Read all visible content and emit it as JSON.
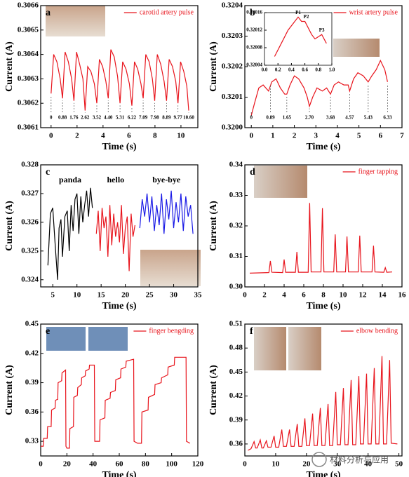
{
  "chart_data": [
    {
      "type": "line",
      "panel": "a",
      "xlabel": "Time (s)",
      "ylabel": "Current (A)",
      "legend": true,
      "xlim": [
        -0.8,
        11.3
      ],
      "xticks": [
        0,
        2,
        4,
        6,
        8,
        10
      ],
      "ylim": [
        0.3061,
        0.3066
      ],
      "yticks": [
        0.3061,
        0.3062,
        0.3063,
        0.3064,
        0.3065,
        0.3066
      ],
      "series": [
        {
          "name": "carotid artery pulse",
          "color": "#e8141c",
          "x": [
            0,
            0.2,
            0.45,
            0.7,
            0.88,
            1.08,
            1.33,
            1.58,
            1.76,
            1.96,
            2.2,
            2.45,
            2.62,
            2.82,
            3.07,
            3.33,
            3.52,
            3.72,
            3.97,
            4.22,
            4.4,
            4.6,
            4.86,
            5.12,
            5.31,
            5.51,
            5.77,
            6.03,
            6.22,
            6.42,
            6.67,
            6.92,
            7.09,
            7.29,
            7.55,
            7.8,
            7.98,
            8.18,
            8.44,
            8.7,
            8.89,
            9.09,
            9.35,
            9.6,
            9.77,
            9.97,
            10.22,
            10.45,
            10.6
          ],
          "values": [
            0.30624,
            0.3064,
            0.30637,
            0.3063,
            0.30622,
            0.30641,
            0.30637,
            0.3063,
            0.30621,
            0.30641,
            0.30636,
            0.3063,
            0.30617,
            0.30635,
            0.30633,
            0.30628,
            0.3062,
            0.30638,
            0.30635,
            0.30629,
            0.30622,
            0.30642,
            0.30639,
            0.30631,
            0.3062,
            0.30637,
            0.30634,
            0.30628,
            0.30619,
            0.30637,
            0.30634,
            0.30628,
            0.30622,
            0.3064,
            0.30637,
            0.3063,
            0.30621,
            0.3064,
            0.30636,
            0.30629,
            0.30621,
            0.30638,
            0.30635,
            0.30629,
            0.3062,
            0.30637,
            0.30633,
            0.30627,
            0.30617
          ]
        }
      ],
      "markers": [
        {
          "value": 0,
          "label": "0"
        },
        {
          "value": 0.88,
          "label": "0.88"
        },
        {
          "value": 1.76,
          "label": "1.76"
        },
        {
          "value": 2.62,
          "label": "2.62"
        },
        {
          "value": 3.52,
          "label": "3.52"
        },
        {
          "value": 4.4,
          "label": "4.40"
        },
        {
          "value": 5.31,
          "label": "5.31"
        },
        {
          "value": 6.22,
          "label": "6.22"
        },
        {
          "value": 7.09,
          "label": "7.09"
        },
        {
          "value": 7.98,
          "label": "7.98"
        },
        {
          "value": 8.89,
          "label": "8.89"
        },
        {
          "value": 9.77,
          "label": "9.77"
        },
        {
          "value": 10.6,
          "label": "10.60"
        }
      ]
    },
    {
      "type": "line",
      "panel": "b",
      "xlabel": "Time (s)",
      "ylabel": "Current (A)",
      "legend": true,
      "xlim": [
        -0.3,
        7
      ],
      "xticks": [
        0,
        1,
        2,
        3,
        4,
        5,
        6,
        7
      ],
      "ylim": [
        0.32,
        0.3204
      ],
      "yticks": [
        {
          "value": 0.32,
          "label": "0.3200"
        },
        0.3201,
        0.3202,
        0.3203,
        0.3204
      ],
      "series": [
        {
          "name": "wrist artery pulse",
          "color": "#e8141c",
          "x": [
            0,
            0.15,
            0.35,
            0.55,
            0.8,
            0.95,
            1.15,
            1.35,
            1.55,
            1.65,
            1.8,
            2.0,
            2.2,
            2.45,
            2.6,
            2.7,
            2.85,
            3.05,
            3.3,
            3.5,
            3.68,
            3.85,
            4.05,
            4.3,
            4.5,
            4.57,
            4.75,
            4.95,
            5.2,
            5.43,
            5.6,
            5.8,
            6.0,
            6.2,
            6.33
          ],
          "values": [
            0.32004,
            0.32008,
            0.32013,
            0.32014,
            0.32012,
            0.32015,
            0.32016,
            0.32013,
            0.32011,
            0.32011,
            0.32014,
            0.32017,
            0.32016,
            0.32013,
            0.3201,
            0.32007,
            0.3201,
            0.32013,
            0.32012,
            0.32013,
            0.32011,
            0.32014,
            0.32015,
            0.32014,
            0.32014,
            0.32012,
            0.32016,
            0.32018,
            0.32017,
            0.32015,
            0.32017,
            0.32019,
            0.32022,
            0.32019,
            0.32015
          ]
        }
      ],
      "markers": [
        {
          "value": 0,
          "label": "0"
        },
        {
          "value": 0.89,
          "label": "0.89"
        },
        {
          "value": 1.65,
          "label": "1.65"
        },
        {
          "value": 2.7,
          "label": "2.70"
        },
        {
          "value": 3.68,
          "label": "3.68"
        },
        {
          "value": 4.57,
          "label": "4.57"
        },
        {
          "value": 5.43,
          "label": "5.43"
        },
        {
          "value": 6.33,
          "label": "6.33"
        }
      ],
      "inset": {
        "xlim": [
          0,
          1
        ],
        "xticks": [
          {
            "value": 0,
            "label": "0.0"
          },
          0.2,
          0.4,
          0.6,
          0.8,
          {
            "value": 1,
            "label": "1.0"
          }
        ],
        "ylim": [
          0.32004,
          0.32016
        ],
        "yticks": [
          0.32004,
          0.32008,
          0.32012,
          0.32016
        ],
        "x": [
          0.15,
          0.25,
          0.35,
          0.45,
          0.5,
          0.55,
          0.6,
          0.7,
          0.75,
          0.85,
          0.92
        ],
        "values": [
          0.32006,
          0.32009,
          0.32012,
          0.32014,
          0.32015,
          0.32014,
          0.32014,
          0.32011,
          0.3201,
          0.32011,
          0.32009
        ],
        "points": [
          {
            "label": "P1",
            "x": 0.5,
            "y": 0.32015
          },
          {
            "label": "P2",
            "x": 0.62,
            "y": 0.32014
          },
          {
            "label": "P3",
            "x": 0.85,
            "y": 0.32011
          }
        ]
      }
    },
    {
      "type": "line",
      "panel": "c",
      "xlabel": "Time (s)",
      "ylabel": "Current (A)",
      "legend": false,
      "series_labels": true,
      "xlim": [
        2.5,
        35
      ],
      "xticks": [
        5,
        10,
        15,
        20,
        25,
        30,
        35
      ],
      "ylim": [
        0.32375,
        0.328
      ],
      "yticks": [
        0.324,
        0.325,
        0.326,
        0.327,
        0.328
      ],
      "series": [
        {
          "name": "panda",
          "color": "#000000",
          "x": [
            4,
            4.5,
            5,
            5.5,
            6,
            6.3,
            6.7,
            7,
            7.5,
            8,
            8.4,
            8.8,
            9.2,
            9.6,
            10,
            10.4,
            10.8,
            11.2,
            11.6,
            12,
            12.4,
            12.8,
            13.2
          ],
          "values": [
            0.3245,
            0.3263,
            0.3265,
            0.3252,
            0.324,
            0.3258,
            0.3261,
            0.3248,
            0.3262,
            0.3264,
            0.325,
            0.3266,
            0.3257,
            0.3268,
            0.327,
            0.3256,
            0.3269,
            0.326,
            0.3266,
            0.3271,
            0.3262,
            0.3272,
            0.3265
          ]
        },
        {
          "name": "hello",
          "color": "#e8141c",
          "x": [
            14,
            14.4,
            14.8,
            15.2,
            15.6,
            16,
            16.4,
            16.8,
            17.2,
            17.6,
            18,
            18.4,
            18.8,
            19.2,
            19.6,
            20,
            20.4,
            20.8,
            21.2,
            21.6,
            22
          ],
          "values": [
            0.3256,
            0.3264,
            0.325,
            0.3265,
            0.3258,
            0.3262,
            0.3248,
            0.3266,
            0.3252,
            0.3263,
            0.3255,
            0.326,
            0.3253,
            0.3266,
            0.3249,
            0.3258,
            0.3262,
            0.3243,
            0.3263,
            0.3255,
            0.3259
          ]
        },
        {
          "name": "bye-bye",
          "color": "#1a1ae6",
          "x": [
            23,
            23.5,
            24,
            24.5,
            25,
            25.5,
            26,
            26.5,
            27,
            27.5,
            28,
            28.5,
            29,
            29.5,
            30,
            30.5,
            31,
            31.5,
            32,
            32.5,
            33,
            33.5,
            34
          ],
          "values": [
            0.3258,
            0.3268,
            0.3262,
            0.327,
            0.326,
            0.3269,
            0.3257,
            0.3266,
            0.3259,
            0.327,
            0.3256,
            0.3268,
            0.3261,
            0.3271,
            0.3258,
            0.3267,
            0.326,
            0.327,
            0.3257,
            0.3269,
            0.3262,
            0.3266,
            0.3256
          ]
        }
      ]
    },
    {
      "type": "line",
      "panel": "d",
      "xlabel": "Time (s)",
      "ylabel": "Current (A)",
      "legend": true,
      "xlim": [
        0,
        16
      ],
      "xticks": [
        0,
        2,
        4,
        6,
        8,
        10,
        12,
        14,
        16
      ],
      "ylim": [
        0.3,
        0.34
      ],
      "yticks": [
        {
          "value": 0.3,
          "label": "0.30"
        },
        0.31,
        0.32,
        0.33,
        0.34
      ],
      "series": [
        {
          "name": "finger tapping",
          "color": "#e8141c",
          "x": [
            0.5,
            2.45,
            2.6,
            2.75,
            3.85,
            4.0,
            4.15,
            5.15,
            5.3,
            5.45,
            6.45,
            6.6,
            6.75,
            7.75,
            7.9,
            8.05,
            9.05,
            9.2,
            9.35,
            10.25,
            10.4,
            10.55,
            11.55,
            11.7,
            11.85,
            12.95,
            13.1,
            13.25,
            14.15,
            14.3,
            14.45,
            15
          ],
          "values": [
            0.3045,
            0.3047,
            0.3085,
            0.3048,
            0.3047,
            0.309,
            0.3048,
            0.3048,
            0.3115,
            0.3048,
            0.3048,
            0.3275,
            0.3049,
            0.3049,
            0.3258,
            0.3049,
            0.3049,
            0.3172,
            0.3049,
            0.3049,
            0.3165,
            0.3049,
            0.3049,
            0.3168,
            0.3049,
            0.3049,
            0.3135,
            0.3049,
            0.3048,
            0.3063,
            0.3048,
            0.3049
          ]
        }
      ]
    },
    {
      "type": "line",
      "panel": "e",
      "xlabel": "Time (s)",
      "ylabel": "Current (A)",
      "legend": true,
      "xlim": [
        0,
        120
      ],
      "xticks": [
        0,
        20,
        40,
        60,
        80,
        100,
        120
      ],
      "ylim": [
        0.315,
        0.45
      ],
      "yticks": [
        0.33,
        0.36,
        0.39,
        0.42,
        0.45
      ],
      "series": [
        {
          "name": "finger bengding",
          "color": "#e8141c",
          "x": [
            0,
            2,
            2.3,
            5,
            5.3,
            8,
            8.3,
            11,
            11.3,
            13,
            13.3,
            16,
            16.3,
            19,
            19.3,
            20,
            22,
            22.3,
            25,
            25.3,
            28,
            28.3,
            31,
            31.3,
            34,
            34.3,
            37,
            37.3,
            41,
            41.3,
            43,
            45,
            45.3,
            49,
            49.3,
            53,
            53.3,
            57,
            57.3,
            61,
            61.3,
            65,
            65.3,
            71,
            71.3,
            74,
            77,
            77.3,
            82,
            82.3,
            87,
            87.3,
            92,
            92.3,
            97,
            97.3,
            102,
            102.3,
            111,
            111.3,
            114
          ],
          "values": [
            0.325,
            0.325,
            0.333,
            0.333,
            0.345,
            0.345,
            0.362,
            0.364,
            0.372,
            0.373,
            0.39,
            0.392,
            0.4,
            0.403,
            0.325,
            0.323,
            0.323,
            0.343,
            0.345,
            0.375,
            0.377,
            0.385,
            0.388,
            0.395,
            0.397,
            0.402,
            0.404,
            0.408,
            0.408,
            0.33,
            0.33,
            0.33,
            0.352,
            0.354,
            0.372,
            0.374,
            0.38,
            0.382,
            0.393,
            0.395,
            0.404,
            0.406,
            0.412,
            0.414,
            0.33,
            0.328,
            0.328,
            0.36,
            0.362,
            0.375,
            0.378,
            0.388,
            0.39,
            0.395,
            0.398,
            0.406,
            0.408,
            0.416,
            0.416,
            0.33,
            0.328
          ]
        }
      ]
    },
    {
      "type": "line",
      "panel": "f",
      "xlabel": "Time (s)",
      "ylabel": "Current (A)",
      "legend": true,
      "xlim": [
        0,
        51
      ],
      "xticks": [
        0,
        10,
        20,
        30,
        40,
        50
      ],
      "ylim": [
        0.345,
        0.51
      ],
      "yticks": [
        0.36,
        0.39,
        0.42,
        0.45,
        0.48,
        0.51
      ],
      "series": [
        {
          "name": "elbow bending",
          "color": "#e8141c",
          "x": [
            1,
            2,
            3,
            3.5,
            4,
            5,
            5.5,
            6,
            7,
            7.5,
            8.5,
            9.5,
            10,
            11,
            12,
            12.5,
            13.5,
            14.5,
            15,
            16,
            17,
            17.5,
            18.5,
            19.5,
            20,
            21,
            22,
            22.5,
            23.5,
            24.5,
            25,
            26,
            27,
            27.5,
            28.5,
            29.5,
            30,
            31,
            32,
            32.5,
            33.5,
            34.5,
            35,
            36,
            37,
            37.5,
            38.5,
            39.5,
            40,
            41,
            42,
            42.5,
            43.5,
            44.5,
            45,
            46,
            47,
            47.5,
            49.5
          ],
          "values": [
            0.352,
            0.354,
            0.363,
            0.355,
            0.355,
            0.365,
            0.355,
            0.355,
            0.364,
            0.356,
            0.356,
            0.37,
            0.356,
            0.356,
            0.378,
            0.357,
            0.357,
            0.378,
            0.357,
            0.357,
            0.385,
            0.357,
            0.357,
            0.392,
            0.358,
            0.358,
            0.398,
            0.358,
            0.358,
            0.405,
            0.358,
            0.358,
            0.41,
            0.358,
            0.358,
            0.425,
            0.359,
            0.359,
            0.43,
            0.359,
            0.359,
            0.44,
            0.359,
            0.359,
            0.445,
            0.36,
            0.36,
            0.448,
            0.36,
            0.36,
            0.455,
            0.36,
            0.36,
            0.47,
            0.36,
            0.36,
            0.465,
            0.361,
            0.36
          ]
        }
      ]
    }
  ],
  "watermark": "材料分析与应用"
}
